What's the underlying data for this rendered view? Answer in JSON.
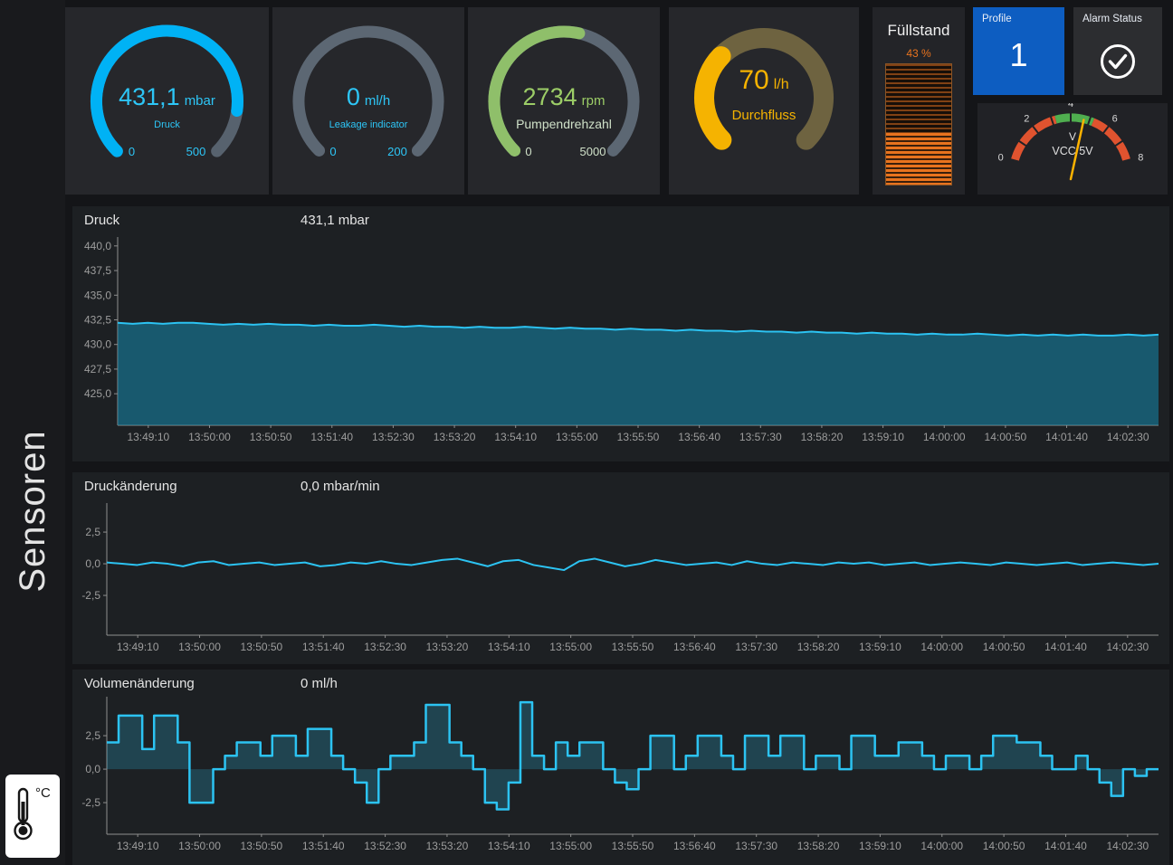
{
  "sidebar": {
    "title": "Sensoren",
    "temp_unit": "°C"
  },
  "gauges": [
    {
      "id": "druck",
      "value": "431,1",
      "unit": "mbar",
      "label": "Druck",
      "min": "0",
      "max": "500",
      "fraction": 0.862,
      "arc_color": "#00b2f5",
      "track_color": "#57626e",
      "text_color": "#2dc6f7",
      "label_color": "#2dc6f7",
      "scale_color": "#2dc6f7"
    },
    {
      "id": "leakage",
      "value": "0",
      "unit": "ml/h",
      "label": "Leakage indicator",
      "min": "0",
      "max": "200",
      "fraction": 0,
      "arc_color": "#00b2f5",
      "track_color": "#5c6773",
      "text_color": "#2dc6f7",
      "label_color": "#2dc6f7",
      "scale_color": "#2dc6f7"
    },
    {
      "id": "pumpendrehzahl",
      "value": "2734",
      "unit": "rpm",
      "label": "Pumpendrehzahl",
      "min": "0",
      "max": "5000",
      "fraction": 0.547,
      "arc_color": "#8fbf6a",
      "track_color": "#5c6773",
      "text_color": "#9ccd67",
      "label_color": "#cfe0c8",
      "scale_color": "#cfe0c8"
    },
    {
      "id": "durchfluss",
      "value": "70",
      "unit": "l/h",
      "label": "Durchfluss",
      "min": "",
      "max": "",
      "fraction": 0.33,
      "arc_color": "#f5b301",
      "track_color": "#6e6340",
      "text_color": "#f5b301",
      "label_color": "#f5b301",
      "scale_color": "#f5b301"
    }
  ],
  "fuellstand": {
    "title": "Füllstand",
    "value": "43 %",
    "percent": 43,
    "color": "#e8731e"
  },
  "profile": {
    "label": "Profile",
    "value": "1",
    "bg": "#0d5dc1"
  },
  "alarm": {
    "label": "Alarm Status"
  },
  "meter": {
    "label_v": "V",
    "label": "VCC 5V",
    "min": 0,
    "max": 8,
    "value": 4.7,
    "tick_step": 1,
    "major_labels": [
      0,
      2,
      4,
      6,
      8
    ],
    "segments": [
      {
        "from": 0,
        "to": 3.2,
        "color": "#e0532f"
      },
      {
        "from": 3.2,
        "to": 5.2,
        "color": "#4fae4f"
      },
      {
        "from": 5.2,
        "to": 8,
        "color": "#e0532f"
      }
    ],
    "needle_color": "#ffb300"
  },
  "chart_data": [
    {
      "id": "druck",
      "type": "area",
      "title": "Druck",
      "value_label": "431,1 mbar",
      "ylabel": "mbar",
      "ymin": 421.8,
      "ymax": 440.9,
      "y_ticks": [
        "440,0",
        "437,5",
        "435,0",
        "432,5",
        "430,0",
        "427,5",
        "425,0"
      ],
      "y_tick_values": [
        440,
        437.5,
        435,
        432.5,
        430,
        427.5,
        425
      ],
      "line_color": "#2cc3f2",
      "fill_color": "rgba(21,128,160,0.60)",
      "x_labels": [
        "13:49:10",
        "13:50:00",
        "13:50:50",
        "13:51:40",
        "13:52:30",
        "13:53:20",
        "13:54:10",
        "13:55:00",
        "13:55:50",
        "13:56:40",
        "13:57:30",
        "13:58:20",
        "13:59:10",
        "14:00:00",
        "14:00:50",
        "14:01:40",
        "14:02:30"
      ],
      "values": [
        432.2,
        432.1,
        432.2,
        432.1,
        432.2,
        432.2,
        432.1,
        432.0,
        432.1,
        432.0,
        432.1,
        432.0,
        432.0,
        431.9,
        432.0,
        431.9,
        431.9,
        432.0,
        431.9,
        431.8,
        431.9,
        431.8,
        431.8,
        431.7,
        431.8,
        431.7,
        431.7,
        431.8,
        431.7,
        431.6,
        431.7,
        431.6,
        431.6,
        431.5,
        431.6,
        431.5,
        431.5,
        431.4,
        431.5,
        431.4,
        431.4,
        431.3,
        431.4,
        431.3,
        431.3,
        431.2,
        431.3,
        431.2,
        431.2,
        431.1,
        431.2,
        431.1,
        431.1,
        431.0,
        431.1,
        431.0,
        431.0,
        431.1,
        431.0,
        430.9,
        431.0,
        430.9,
        431.0,
        430.9,
        431.0,
        430.9,
        430.9,
        431.0,
        430.9,
        431.0
      ]
    },
    {
      "id": "druckaenderung",
      "type": "line",
      "title": "Druckänderung",
      "value_label": "0,0 mbar/min",
      "ylabel": "mbar/min",
      "ymin": -5.64,
      "ymax": 4.79,
      "y_ticks": [
        "2,5",
        "0,0",
        "-2,5"
      ],
      "y_tick_values": [
        2.5,
        0,
        -2.5
      ],
      "line_color": "#2cc3f2",
      "fill_color": "none",
      "x_labels": [
        "13:49:10",
        "13:50:00",
        "13:50:50",
        "13:51:40",
        "13:52:30",
        "13:53:20",
        "13:54:10",
        "13:55:00",
        "13:55:50",
        "13:56:40",
        "13:57:30",
        "13:58:20",
        "13:59:10",
        "14:00:00",
        "14:00:50",
        "14:01:40",
        "14:02:30"
      ],
      "values": [
        0.1,
        0.0,
        -0.1,
        0.1,
        0.0,
        -0.2,
        0.1,
        0.2,
        -0.1,
        0.0,
        0.1,
        -0.1,
        0.0,
        0.1,
        -0.2,
        -0.1,
        0.1,
        0.0,
        0.2,
        0.0,
        -0.1,
        0.1,
        0.3,
        0.4,
        0.1,
        -0.2,
        0.2,
        0.3,
        -0.1,
        -0.3,
        -0.5,
        0.2,
        0.4,
        0.1,
        -0.2,
        0.0,
        0.3,
        0.1,
        -0.1,
        0.0,
        0.1,
        -0.1,
        0.2,
        0.0,
        -0.1,
        0.1,
        0.0,
        -0.1,
        0.1,
        0.0,
        0.1,
        -0.1,
        0.0,
        0.1,
        -0.1,
        0.0,
        0.1,
        0.0,
        -0.1,
        0.1,
        0.0,
        -0.1,
        0.0,
        0.1,
        -0.1,
        0.0,
        0.1,
        0.0,
        -0.1,
        0.0
      ]
    },
    {
      "id": "volumenaenderung",
      "type": "step-area",
      "title": "Volumenänderung",
      "value_label": "0 ml/h",
      "ylabel": "ml/h",
      "ymin": -4.86,
      "ymax": 5.41,
      "baseline": 0,
      "y_ticks": [
        "2,5",
        "0,0",
        "-2,5"
      ],
      "y_tick_values": [
        2.5,
        0,
        -2.5
      ],
      "line_color": "#2cc3f2",
      "fill_color": "rgba(44,195,242,0.22)",
      "x_labels": [
        "13:49:10",
        "13:50:00",
        "13:50:50",
        "13:51:40",
        "13:52:30",
        "13:53:20",
        "13:54:10",
        "13:55:00",
        "13:55:50",
        "13:56:40",
        "13:57:30",
        "13:58:20",
        "13:59:10",
        "14:00:00",
        "14:00:50",
        "14:01:40",
        "14:02:30"
      ],
      "values": [
        2,
        4,
        4,
        1.5,
        4,
        4,
        2,
        -2.5,
        -2.5,
        0,
        1,
        2,
        2,
        1,
        2.5,
        2.5,
        1,
        3,
        3,
        1,
        0,
        -1,
        -2.5,
        0,
        1,
        1,
        2,
        4.8,
        4.8,
        2,
        1,
        0,
        -2.5,
        -3,
        -1,
        5,
        1,
        0,
        2,
        1,
        2,
        2,
        0,
        -1,
        -1.5,
        0,
        2.5,
        2.5,
        0,
        1,
        2.5,
        2.5,
        1,
        0,
        2.5,
        2.5,
        1,
        2.5,
        2.5,
        0,
        1,
        1,
        0,
        2.5,
        2.5,
        1,
        1,
        2,
        2,
        1,
        0,
        1,
        1,
        0,
        1,
        2.5,
        2.5,
        2,
        2,
        1,
        0,
        0,
        1,
        0,
        -1,
        -2,
        0,
        -0.5,
        0,
        0
      ]
    }
  ]
}
